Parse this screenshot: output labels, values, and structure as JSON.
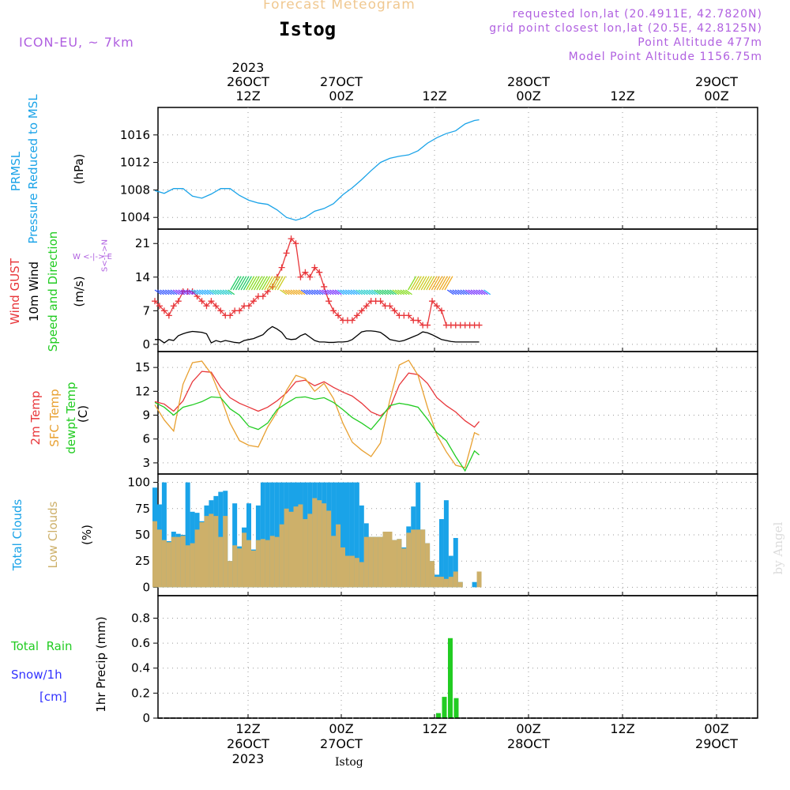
{
  "header": {
    "product_title": "Forecast Meteogram",
    "location": "Istog",
    "model": "ICON-EU, ~ 7km",
    "requested": "requested lon,lat (20.4911E, 42.7820N)",
    "grid_point": "grid point closest lon,lat (20.5E, 42.8125N)",
    "point_alt": "Point Altitude 477m",
    "model_alt": "Model Point Altitude 1156.75m",
    "credit": "by Angel",
    "footer_location": "Istog"
  },
  "time_axis": {
    "top_labels": [
      {
        "l1": "2023",
        "l2": "26OCT",
        "l3": "12Z"
      },
      {
        "l1": "",
        "l2": "27OCT",
        "l3": "00Z"
      },
      {
        "l1": "",
        "l2": "",
        "l3": "12Z"
      },
      {
        "l1": "",
        "l2": "28OCT",
        "l3": "00Z"
      },
      {
        "l1": "",
        "l2": "",
        "l3": "12Z"
      },
      {
        "l1": "",
        "l2": "29OCT",
        "l3": "00Z"
      }
    ],
    "bottom_labels": [
      {
        "l1": "12Z",
        "l2": "26OCT",
        "l3": "2023"
      },
      {
        "l1": "00Z",
        "l2": "27OCT",
        "l3": ""
      },
      {
        "l1": "12Z",
        "l2": "",
        "l3": ""
      },
      {
        "l1": "00Z",
        "l2": "28OCT",
        "l3": ""
      },
      {
        "l1": "12Z",
        "l2": "",
        "l3": ""
      },
      {
        "l1": "00Z",
        "l2": "29OCT",
        "l3": ""
      }
    ]
  },
  "labels": {
    "p1_a": "PRMSL",
    "p1_b": "Pressure Reduced to MSL",
    "p1_unit": "(hPa)",
    "p2_a": "Wind GUST",
    "p2_b": "10m Wind",
    "p2_c": "Speed and Direction",
    "p2_unit": "(m/s)",
    "compass_ns": "S<-|->N",
    "compass_we": "W <-|-> E",
    "p3_a": "2m Temp",
    "p3_b": "SFC Temp",
    "p3_c": "dewpt Temp",
    "p3_unit": "(C)",
    "p4_a": "Total Clouds",
    "p4_b": "Low Clouds",
    "p4_unit": "(%)",
    "p5_a": "Total  Rain",
    "p5_b": "Snow/1h",
    "p5_c": "[cm]",
    "p5_unit": "1hr Precip (mm)"
  },
  "colors": {
    "pressure": "#1aa3e8",
    "gust": "#e8363a",
    "wind": "#000000",
    "temp2m": "#e8363a",
    "sfc_temp": "#e8a030",
    "dewpt": "#22cc22",
    "total_clouds": "#1aa3e8",
    "low_clouds": "#cdb06a",
    "rain": "#22cc22",
    "snow": "#3333ff",
    "header": "#b060e0",
    "title_faint": "#f0c890"
  },
  "chart_data": [
    {
      "type": "line",
      "title": "PRMSL Pressure Reduced to MSL",
      "ylabel": "(hPa)",
      "ylim": [
        1002.3,
        1020
      ],
      "yticks": [
        1004,
        1008,
        1012,
        1016
      ],
      "x_hours": [
        0,
        2,
        4,
        6,
        8,
        10,
        12,
        14,
        16,
        18,
        20,
        22,
        24,
        26,
        28,
        30,
        32,
        34,
        36,
        38,
        40,
        42,
        44,
        46,
        48,
        50,
        52,
        54,
        56,
        58,
        60,
        62,
        64,
        66,
        68,
        69
      ],
      "series": [
        {
          "name": "PRMSL",
          "values": [
            1007.9,
            1007.5,
            1008.2,
            1008.2,
            1007.1,
            1006.8,
            1007.4,
            1008.2,
            1008.2,
            1007.2,
            1006.5,
            1006.1,
            1005.9,
            1005.1,
            1004.0,
            1003.6,
            1004.0,
            1004.9,
            1005.3,
            1006.0,
            1007.3,
            1008.3,
            1009.5,
            1010.8,
            1012.0,
            1012.6,
            1012.9,
            1013.1,
            1013.7,
            1014.8,
            1015.6,
            1016.2,
            1016.6,
            1017.6,
            1018.1,
            1018.2
          ]
        }
      ]
    },
    {
      "type": "line",
      "title": "Wind GUST / 10m Wind Speed and Direction",
      "ylabel": "(m/s)",
      "ylim": [
        -1.5,
        24
      ],
      "yticks": [
        0,
        7,
        14,
        21
      ],
      "x_hours": [
        0,
        1,
        2,
        3,
        4,
        5,
        6,
        7,
        8,
        9,
        10,
        11,
        12,
        13,
        14,
        15,
        16,
        17,
        18,
        19,
        20,
        21,
        22,
        23,
        24,
        25,
        26,
        27,
        28,
        29,
        30,
        31,
        32,
        33,
        34,
        35,
        36,
        37,
        38,
        39,
        40,
        41,
        42,
        43,
        44,
        45,
        46,
        47,
        48,
        49,
        50,
        51,
        52,
        53,
        54,
        55,
        56,
        57,
        58,
        59,
        60,
        61,
        62,
        63,
        64,
        65,
        66,
        67,
        68,
        69
      ],
      "series": [
        {
          "name": "Wind GUST",
          "values": [
            9,
            8,
            7,
            6,
            8,
            9,
            11,
            11,
            11,
            10,
            9,
            8,
            9,
            8,
            7,
            6,
            6,
            7,
            7,
            8,
            8,
            9,
            10,
            10,
            11,
            12,
            14,
            16,
            19,
            22,
            21,
            14,
            15,
            14,
            16,
            15,
            12,
            9,
            7,
            6,
            5,
            5,
            5,
            6,
            7,
            8,
            9,
            9,
            9,
            8,
            8,
            7,
            6,
            6,
            6,
            5,
            5,
            4,
            4,
            9,
            8,
            7,
            4,
            4,
            4,
            4,
            4,
            4,
            4,
            4
          ]
        },
        {
          "name": "10m Wind",
          "values": [
            1,
            1,
            0.3,
            1,
            0.8,
            1.8,
            2.2,
            2.5,
            2.7,
            2.6,
            2.5,
            2.2,
            0.3,
            0.8,
            0.5,
            0.8,
            0.6,
            0.4,
            0.3,
            0.8,
            1,
            1.2,
            1.6,
            2,
            3,
            3.7,
            3.2,
            2.5,
            1.2,
            1,
            1.1,
            1.8,
            2.2,
            1.5,
            0.8,
            0.5,
            0.5,
            0.4,
            0.4,
            0.5,
            0.5,
            0.6,
            1,
            1.8,
            2.6,
            2.8,
            2.8,
            2.7,
            2.5,
            1.8,
            1,
            0.8,
            0.6,
            0.8,
            1.2,
            1.6,
            2,
            2.6,
            2.4,
            2,
            1.5,
            1,
            0.8,
            0.6,
            0.5,
            0.5,
            0.5,
            0.5,
            0.5,
            0.5
          ]
        }
      ]
    },
    {
      "type": "line",
      "title": "2m Temp / SFC Temp / dewpt Temp",
      "ylabel": "(C)",
      "ylim": [
        1.6,
        17
      ],
      "yticks": [
        3,
        6,
        9,
        12,
        15
      ],
      "x_hours": [
        0,
        2,
        4,
        6,
        8,
        10,
        12,
        14,
        16,
        18,
        20,
        22,
        24,
        26,
        28,
        30,
        32,
        34,
        36,
        38,
        40,
        42,
        44,
        46,
        48,
        50,
        52,
        54,
        56,
        58,
        60,
        62,
        64,
        66,
        68,
        69
      ],
      "series": [
        {
          "name": "2m Temp",
          "values": [
            10.7,
            10.4,
            9.5,
            10.8,
            13.2,
            14.5,
            14.4,
            12.5,
            11.2,
            10.5,
            10.0,
            9.5,
            10.0,
            10.8,
            11.8,
            13.2,
            13.4,
            12.7,
            13.2,
            12.5,
            11.9,
            11.4,
            10.5,
            9.4,
            8.9,
            9.9,
            12.8,
            14.3,
            14.1,
            13.0,
            11.2,
            10.2,
            9.4,
            8.3,
            7.5,
            8.2
          ]
        },
        {
          "name": "SFC Temp",
          "values": [
            10.3,
            8.4,
            7.0,
            12.9,
            15.6,
            15.8,
            14.2,
            11.3,
            8.0,
            5.8,
            5.2,
            5.0,
            7.5,
            9.4,
            12.1,
            14.0,
            13.6,
            12.0,
            13.0,
            11.1,
            8.0,
            5.6,
            4.6,
            3.8,
            5.5,
            10.9,
            15.3,
            15.9,
            14.0,
            10.0,
            6.5,
            4.4,
            2.7,
            2.4,
            6.8,
            6.5
          ]
        },
        {
          "name": "dewpt Temp",
          "values": [
            10.6,
            10.0,
            9.0,
            10.0,
            10.3,
            10.7,
            11.3,
            11.2,
            9.8,
            9.0,
            7.6,
            7.2,
            8.0,
            9.7,
            10.5,
            11.2,
            11.3,
            11.0,
            11.2,
            10.6,
            9.7,
            8.7,
            8.0,
            7.2,
            8.6,
            10.2,
            10.5,
            10.3,
            10.0,
            8.5,
            6.8,
            5.8,
            3.8,
            2.0,
            4.5,
            4.0
          ]
        }
      ]
    },
    {
      "type": "bar",
      "title": "Total Clouds / Low Clouds",
      "ylabel": "(%)",
      "ylim": [
        -8,
        108
      ],
      "yticks": [
        0,
        25,
        50,
        75,
        100
      ],
      "x_hours": [
        0,
        1,
        2,
        3,
        4,
        5,
        6,
        7,
        8,
        9,
        10,
        11,
        12,
        13,
        14,
        15,
        16,
        17,
        18,
        19,
        20,
        21,
        22,
        23,
        24,
        25,
        26,
        27,
        28,
        29,
        30,
        31,
        32,
        33,
        34,
        35,
        36,
        37,
        38,
        39,
        40,
        41,
        42,
        43,
        44,
        45,
        46,
        47,
        48,
        49,
        50,
        51,
        52,
        53,
        54,
        55,
        56,
        57,
        58,
        59,
        60,
        61,
        62,
        63,
        64,
        65,
        66,
        67,
        68,
        69
      ],
      "series": [
        {
          "name": "Total Clouds",
          "values": [
            95,
            79,
            100,
            44,
            53,
            51,
            50,
            100,
            72,
            71,
            63,
            78,
            83,
            87,
            91,
            92,
            25,
            80,
            39,
            57,
            80,
            36,
            78,
            100,
            100,
            100,
            100,
            100,
            100,
            100,
            100,
            100,
            100,
            100,
            100,
            100,
            100,
            100,
            100,
            100,
            100,
            100,
            100,
            100,
            78,
            61,
            48,
            48,
            48,
            53,
            53,
            45,
            46,
            38,
            58,
            77,
            100,
            55,
            42,
            25,
            12,
            65,
            83,
            30,
            47,
            5,
            0,
            0,
            5,
            0
          ]
        },
        {
          "name": "Low Clouds",
          "values": [
            63,
            55,
            45,
            43,
            48,
            48,
            49,
            40,
            42,
            55,
            62,
            68,
            70,
            68,
            48,
            68,
            25,
            40,
            37,
            52,
            45,
            35,
            45,
            46,
            45,
            49,
            48,
            60,
            75,
            72,
            77,
            79,
            65,
            70,
            85,
            83,
            80,
            73,
            49,
            60,
            38,
            30,
            30,
            28,
            24,
            48,
            48,
            48,
            48,
            53,
            53,
            45,
            46,
            37,
            52,
            55,
            55,
            55,
            42,
            25,
            10,
            10,
            8,
            10,
            15,
            5,
            0,
            0,
            0,
            15
          ]
        }
      ]
    },
    {
      "type": "bar",
      "title": "Total Rain / Snow/1h",
      "ylabel": "1hr Precip (mm)",
      "ylim": [
        0,
        0.98
      ],
      "yticks": [
        "0",
        "0.2",
        "0.4",
        "0.6",
        "0.8"
      ],
      "x_hours": [
        30,
        31,
        32,
        33
      ],
      "series": [
        {
          "name": "Total Rain",
          "values": [
            0.04,
            0.17,
            0.64,
            0.16
          ]
        }
      ]
    }
  ]
}
